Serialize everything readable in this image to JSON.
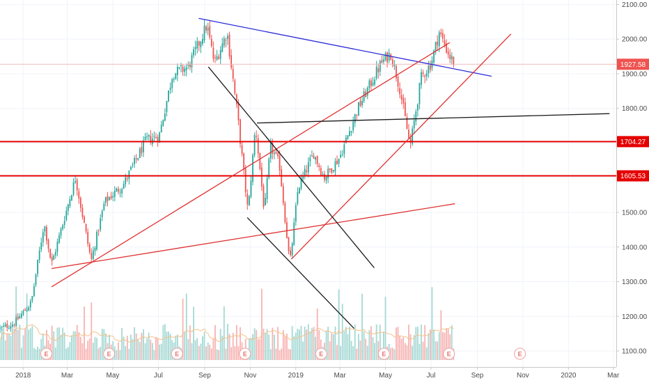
{
  "chart_data": {
    "type": "candlestick",
    "y_axis": {
      "ticks": [
        "2100.00",
        "2000.00",
        "1900.00",
        "1800.00",
        "1700.00",
        "1600.00",
        "1500.00",
        "1400.00",
        "1300.00",
        "1200.00",
        "1100.00"
      ],
      "range": [
        1090,
        2105
      ]
    },
    "x_axis": {
      "ticks": [
        {
          "label": "2018",
          "date": "2018-01-01"
        },
        {
          "label": "Mar",
          "date": "2018-03-01"
        },
        {
          "label": "May",
          "date": "2018-05-01"
        },
        {
          "label": "Jul",
          "date": "2018-07-01"
        },
        {
          "label": "Sep",
          "date": "2018-09-01"
        },
        {
          "label": "Nov",
          "date": "2018-11-01"
        },
        {
          "label": "2019",
          "date": "2019-01-01"
        },
        {
          "label": "Mar",
          "date": "2019-03-01"
        },
        {
          "label": "May",
          "date": "2019-05-01"
        },
        {
          "label": "Jul",
          "date": "2019-07-01"
        },
        {
          "label": "Sep",
          "date": "2019-09-01"
        },
        {
          "label": "Nov",
          "date": "2019-11-01"
        },
        {
          "label": "2020",
          "date": "2020-01-01"
        },
        {
          "label": "Mar",
          "date": "2020-03-01"
        }
      ],
      "range": [
        "2017-12-01",
        "2020-03-05"
      ]
    },
    "price_path": [
      {
        "date": "2017-12-01",
        "price": 1165
      },
      {
        "date": "2017-12-20",
        "price": 1180
      },
      {
        "date": "2018-01-12",
        "price": 1240
      },
      {
        "date": "2018-01-29",
        "price": 1470
      },
      {
        "date": "2018-02-08",
        "price": 1350
      },
      {
        "date": "2018-03-12",
        "price": 1600
      },
      {
        "date": "2018-04-02",
        "price": 1360
      },
      {
        "date": "2018-04-20",
        "price": 1530
      },
      {
        "date": "2018-05-15",
        "price": 1580
      },
      {
        "date": "2018-06-15",
        "price": 1710
      },
      {
        "date": "2018-07-02",
        "price": 1720
      },
      {
        "date": "2018-07-20",
        "price": 1900
      },
      {
        "date": "2018-08-10",
        "price": 1920
      },
      {
        "date": "2018-09-04",
        "price": 2040
      },
      {
        "date": "2018-09-14",
        "price": 1930
      },
      {
        "date": "2018-10-01",
        "price": 2020
      },
      {
        "date": "2018-10-15",
        "price": 1780
      },
      {
        "date": "2018-10-29",
        "price": 1500
      },
      {
        "date": "2018-11-08",
        "price": 1750
      },
      {
        "date": "2018-11-20",
        "price": 1500
      },
      {
        "date": "2018-11-28",
        "price": 1690
      },
      {
        "date": "2018-12-10",
        "price": 1640
      },
      {
        "date": "2018-12-24",
        "price": 1350
      },
      {
        "date": "2019-01-04",
        "price": 1570
      },
      {
        "date": "2019-01-25",
        "price": 1670
      },
      {
        "date": "2019-02-08",
        "price": 1600
      },
      {
        "date": "2019-03-01",
        "price": 1660
      },
      {
        "date": "2019-03-25",
        "price": 1800
      },
      {
        "date": "2019-04-25",
        "price": 1930
      },
      {
        "date": "2019-05-08",
        "price": 1960
      },
      {
        "date": "2019-05-20",
        "price": 1860
      },
      {
        "date": "2019-06-03",
        "price": 1690
      },
      {
        "date": "2019-06-18",
        "price": 1890
      },
      {
        "date": "2019-07-01",
        "price": 1930
      },
      {
        "date": "2019-07-12",
        "price": 2020
      },
      {
        "date": "2019-07-26",
        "price": 1950
      },
      {
        "date": "2019-08-02",
        "price": 1927.58
      }
    ],
    "last_price": {
      "value": 1927.58,
      "label": "1927.58",
      "color": "#ef5350"
    },
    "horizontal_levels": [
      {
        "value": 1704.27,
        "label": "1704.27",
        "color": "#e60000"
      },
      {
        "value": 1605.53,
        "label": "1605.53",
        "color": "#e60000"
      }
    ],
    "trendlines": [
      {
        "color": "#2b2bd8",
        "points": [
          {
            "date": "2018-08-24",
            "price": 2060
          },
          {
            "date": "2019-09-20",
            "price": 1893
          }
        ]
      },
      {
        "color": "#e03030",
        "points": [
          {
            "date": "2018-02-08",
            "price": 1285
          },
          {
            "date": "2019-07-26",
            "price": 1990
          }
        ]
      },
      {
        "color": "#e03030",
        "points": [
          {
            "date": "2018-02-08",
            "price": 1338
          },
          {
            "date": "2019-08-02",
            "price": 1525
          }
        ]
      },
      {
        "color": "#e03030",
        "points": [
          {
            "date": "2018-12-26",
            "price": 1365
          },
          {
            "date": "2019-10-16",
            "price": 2015
          }
        ]
      },
      {
        "color": "#1a1a1a",
        "points": [
          {
            "date": "2018-11-10",
            "price": 1758
          },
          {
            "date": "2020-02-25",
            "price": 1785
          }
        ]
      },
      {
        "color": "#1a1a1a",
        "points": [
          {
            "date": "2018-09-06",
            "price": 1920
          },
          {
            "date": "2019-04-16",
            "price": 1340
          }
        ]
      },
      {
        "color": "#1a1a1a",
        "points": [
          {
            "date": "2018-10-28",
            "price": 1485
          },
          {
            "date": "2019-03-20",
            "price": 1165
          }
        ]
      }
    ],
    "earnings_markers": [
      {
        "date": "2018-02-01",
        "label": "E",
        "state": "past"
      },
      {
        "date": "2018-04-26",
        "label": "E",
        "state": "past"
      },
      {
        "date": "2018-07-26",
        "label": "E",
        "state": "past"
      },
      {
        "date": "2018-10-25",
        "label": "E",
        "state": "past"
      },
      {
        "date": "2019-02-04",
        "label": "E",
        "state": "past"
      },
      {
        "date": "2019-04-29",
        "label": "E",
        "state": "past"
      },
      {
        "date": "2019-07-25",
        "label": "E",
        "state": "past"
      },
      {
        "date": "2019-10-28",
        "label": "E",
        "state": "future"
      }
    ],
    "colors": {
      "up": "#26a69a",
      "down": "#ef5350",
      "up_volume": "#a5d9d4",
      "down_volume": "#f7b3b2",
      "grid": "#f0f3fa",
      "axis": "#c8c8c8",
      "volume_ma": "#f5c28a"
    }
  }
}
